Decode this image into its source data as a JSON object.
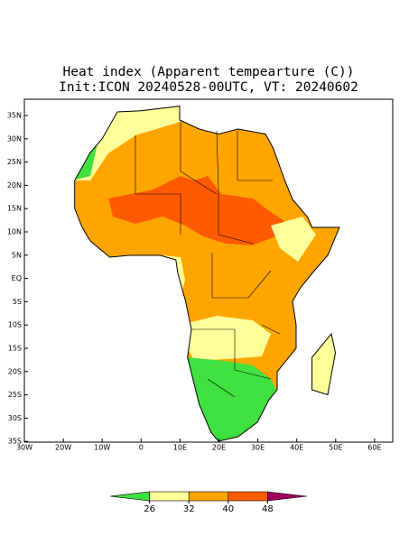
{
  "title": {
    "line1": "Heat index (Apparent tempearture (C))",
    "line2": "Init:ICON 20240528-00UTC, VT: 20240602"
  },
  "map": {
    "lat_labels": [
      "35N",
      "30N",
      "25N",
      "20N",
      "15N",
      "10N",
      "5N",
      "EQ",
      "5S",
      "10S",
      "15S",
      "20S",
      "25S",
      "30S",
      "35S"
    ],
    "lon_labels": [
      "30W",
      "20W",
      "10W",
      "0",
      "10E",
      "20E",
      "30E",
      "40E",
      "50E",
      "60E"
    ]
  },
  "colorbar": {
    "ticks": [
      26,
      32,
      40,
      48
    ],
    "colors": [
      "#3fe03f",
      "#ffff99",
      "#ffa500",
      "#ff5a00",
      "#a0005a"
    ]
  }
}
